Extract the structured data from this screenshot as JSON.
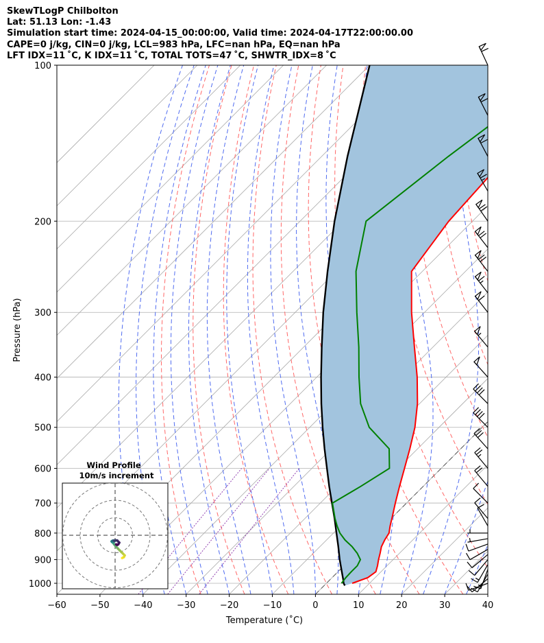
{
  "header": {
    "title": "SkewTLogP Chilbolton",
    "location": "Lat: 51.13   Lon: -1.43",
    "times": "Simulation start time: 2024-04-15_00:00:00, Valid time: 2024-04-17T22:00:00.00",
    "indices1": "CAPE=0 j/kg, CIN=0 j/kg, LCL=983 hPa, LFC=nan hPa, EQ=nan hPa",
    "indices2": "LFT IDX=11 ˚C, K IDX=11 ˚C, TOTAL TOTS=47 ˚C, SHWTR_IDX=8 ˚C"
  },
  "colors": {
    "temperature": "#ff0000",
    "dewpoint": "#008000",
    "parcel": "#000000",
    "shading": "#a2c4de",
    "dry_adiabats": "#ff6666",
    "moist_adiabats": "#4f6bf0",
    "mixing_ratio": "#9040b0",
    "isotherms": "#aaaaaa"
  },
  "chart_data": {
    "type": "line",
    "title": "",
    "xlabel": "Temperature (˚C)",
    "ylabel": "Pressure (hPa)",
    "xlim": [
      -60,
      40
    ],
    "ylim": [
      1050,
      100
    ],
    "yscale": "log",
    "skew": true,
    "grid": true,
    "x_ticks": [
      "−60",
      "−50",
      "−40",
      "−30",
      "−20",
      "−10",
      "0",
      "10",
      "20",
      "30",
      "40"
    ],
    "y_ticks": [
      "100",
      "200",
      "300",
      "400",
      "500",
      "600",
      "700",
      "800",
      "900",
      "1000"
    ],
    "series": [
      {
        "key": "temperature",
        "pressure": [
          1000,
          975,
          950,
          925,
          900,
          875,
          850,
          825,
          800,
          775,
          750,
          700,
          650,
          600,
          550,
          500,
          450,
          400,
          350,
          300,
          250,
          200,
          150,
          100
        ],
        "values": [
          6.0,
          8.3,
          8.8,
          7.8,
          6.6,
          5.5,
          4.3,
          3.5,
          2.9,
          1.5,
          0.2,
          -2.6,
          -5.5,
          -8.5,
          -11.8,
          -15.6,
          -20.5,
          -26.7,
          -34.3,
          -43.0,
          -52.5,
          -55.5,
          -57.0,
          -60.5
        ]
      },
      {
        "key": "dewpoint",
        "pressure": [
          1000,
          975,
          950,
          925,
          900,
          875,
          850,
          825,
          800,
          775,
          750,
          700,
          650,
          600,
          550,
          500,
          450,
          400,
          350,
          300,
          250,
          200,
          150,
          100
        ],
        "values": [
          3.5,
          3.2,
          3.1,
          3.1,
          2.4,
          0.2,
          -2.5,
          -5.7,
          -8.5,
          -10.8,
          -13.0,
          -17.2,
          -14.5,
          -12.0,
          -16.6,
          -26.2,
          -33.7,
          -40.2,
          -47.2,
          -55.7,
          -65.4,
          -74.7,
          -70.6,
          -63.5
        ]
      },
      {
        "key": "parcel",
        "pressure": [
          1010,
          1000,
          983,
          950,
          900,
          850,
          800,
          750,
          700,
          650,
          600,
          550,
          500,
          450,
          400,
          350,
          300,
          250,
          200,
          150,
          100
        ],
        "values": [
          4.8,
          4.0,
          3.0,
          0.9,
          -2.4,
          -5.7,
          -9.3,
          -13.1,
          -17.3,
          -21.8,
          -26.5,
          -31.6,
          -37.0,
          -42.8,
          -49.0,
          -55.8,
          -63.5,
          -72.0,
          -82.0,
          -94.0,
          -110.0
        ]
      }
    ],
    "wind_barbs": {
      "pressure": [
        1000,
        980,
        960,
        940,
        920,
        900,
        880,
        860,
        840,
        820,
        800,
        775,
        750,
        700,
        650,
        600,
        550,
        500,
        450,
        400,
        350,
        300,
        275,
        250,
        225,
        200,
        175,
        150,
        125,
        100
      ],
      "speed_kt": [
        8,
        10,
        12,
        14,
        13,
        12,
        10,
        10,
        8,
        6,
        5,
        8,
        10,
        12,
        18,
        25,
        32,
        38,
        42,
        48,
        55,
        60,
        65,
        70,
        70,
        68,
        65,
        62,
        62,
        60
      ],
      "direction_deg": [
        250,
        230,
        210,
        200,
        210,
        220,
        230,
        240,
        250,
        260,
        270,
        330,
        320,
        315,
        320,
        320,
        318,
        315,
        315,
        318,
        320,
        322,
        322,
        322,
        322,
        325,
        330,
        332,
        333,
        335
      ]
    },
    "hodograph": {
      "title": "Wind Profile",
      "subtitle": "10m/s increment",
      "u": [
        4,
        5,
        5.5,
        4.5,
        3.5,
        2.5,
        1.5,
        0.5,
        -0.5,
        -1.2,
        -1.8,
        -2,
        -1.6,
        -1,
        -0.4,
        -0.6,
        0,
        1.2,
        2.4,
        1.8,
        1.2,
        0.6
      ],
      "v": [
        -13,
        -12.5,
        -11.5,
        -10.5,
        -9.5,
        -8.5,
        -7.5,
        -6.5,
        -5.2,
        -4.3,
        -3.8,
        -3.5,
        -3.2,
        -3.0,
        -3.5,
        -3.1,
        -2.9,
        -3.0,
        -4.2,
        -5.2,
        -5.5,
        -5.2
      ]
    }
  }
}
